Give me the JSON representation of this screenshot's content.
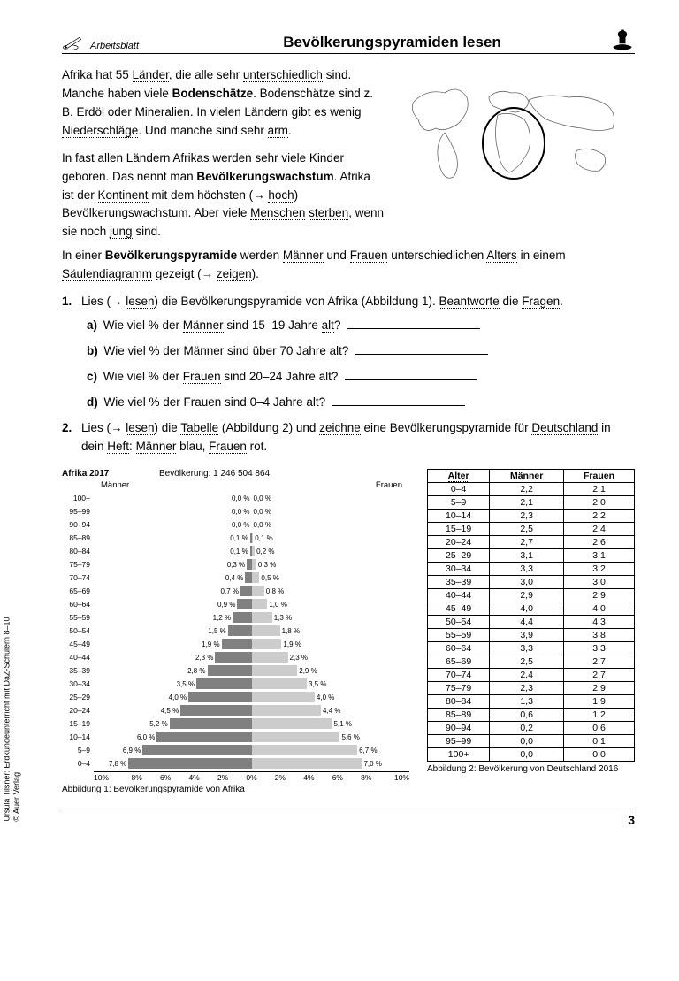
{
  "header": {
    "sheet_label": "Arbeitsblatt",
    "title": "Bevölkerungspyramiden lesen"
  },
  "intro": {
    "p1_html": "Afrika hat 55 <span class='u'>Länder</span>, die alle sehr <span class='u'>unterschiedlich</span> sind. Manche haben viele <span class='b'>Bodenschätze</span>. Bodenschätze sind z. B. <span class='u'>Erdöl</span> oder <span class='u'>Mineralien</span>. In vielen Ländern gibt es wenig <span class='u'>Niederschläge</span>. Und manche sind sehr <span class='u'>arm</span>.",
    "p2_html": "In fast allen Ländern Afrikas werden sehr viele <span class='u'>Kinder</span> geboren. Das nennt man <span class='b'>Bevölkerungswachstum</span>. Afrika ist der <span class='u'>Kontinent</span> mit dem höchsten (→ <span class='u'>hoch</span>) Bevölkerungswachstum. Aber viele <span class='u'>Menschen</span> <span class='u'>sterben</span>, wenn sie noch <span class='u'>jung</span> sind.",
    "p3_html": "In einer <span class='b'>Bevölkerungspyramide</span> werden <span class='u'>Männer</span> und <span class='u'>Frauen</span> unterschiedlichen <span class='u'>Alters</span> in einem <span class='u'>Säulendiagramm</span> gezeigt (→ <span class='u'>zeigen</span>)."
  },
  "tasks": {
    "t1": {
      "num": "1.",
      "text_html": "Lies (→ <span class='u'>lesen</span>) die Bevölkerungspyramide von Afrika (Abbildung 1). <span class='u'>Beantworte</span> die <span class='u'>Fragen</span>.",
      "subs": [
        {
          "lbl": "a)",
          "html": "Wie viel % der <span class='u'>Männer</span> sind 15–19 Jahre <span class='u'>alt</span>?"
        },
        {
          "lbl": "b)",
          "html": "Wie viel % der Männer sind über 70 Jahre alt?"
        },
        {
          "lbl": "c)",
          "html": "Wie viel % der <span class='u'>Frauen</span> sind 20–24 Jahre alt?"
        },
        {
          "lbl": "d)",
          "html": "Wie viel % der Frauen sind 0–4 Jahre alt?"
        }
      ]
    },
    "t2": {
      "num": "2.",
      "text_html": "Lies (→ <span class='u'>lesen</span>) die <span class='u'>Tabelle</span> (Abbildung 2) und <span class='u'>zeichne</span> eine Bevölkerungspyramide für <span class='u'>Deutschland</span> in dein <span class='u'>Heft</span>: <span class='u'>Männer</span> blau, <span class='u'>Frauen</span> rot."
    }
  },
  "pyramid": {
    "title": "Afrika 2017",
    "population_label": "Bevölkerung: 1 246 504 864",
    "col_men": "Männer",
    "col_women": "Frauen",
    "type": "population-pyramid",
    "bar_color_men": "#808080",
    "bar_color_women": "#cccccc",
    "max_pct": 10,
    "axis_ticks": [
      "10%",
      "8%",
      "6%",
      "4%",
      "2%",
      "0%",
      "2%",
      "4%",
      "6%",
      "8%",
      "10%"
    ],
    "rows": [
      {
        "age": "100+",
        "m": 0.0,
        "f": 0.0
      },
      {
        "age": "95–99",
        "m": 0.0,
        "f": 0.0
      },
      {
        "age": "90–94",
        "m": 0.0,
        "f": 0.0
      },
      {
        "age": "85–89",
        "m": 0.1,
        "f": 0.1
      },
      {
        "age": "80–84",
        "m": 0.1,
        "f": 0.2
      },
      {
        "age": "75–79",
        "m": 0.3,
        "f": 0.3
      },
      {
        "age": "70–74",
        "m": 0.4,
        "f": 0.5
      },
      {
        "age": "65–69",
        "m": 0.7,
        "f": 0.8
      },
      {
        "age": "60–64",
        "m": 0.9,
        "f": 1.0
      },
      {
        "age": "55–59",
        "m": 1.2,
        "f": 1.3
      },
      {
        "age": "50–54",
        "m": 1.5,
        "f": 1.8
      },
      {
        "age": "45–49",
        "m": 1.9,
        "f": 1.9
      },
      {
        "age": "40–44",
        "m": 2.3,
        "f": 2.3
      },
      {
        "age": "35–39",
        "m": 2.8,
        "f": 2.9
      },
      {
        "age": "30–34",
        "m": 3.5,
        "f": 3.5
      },
      {
        "age": "25–29",
        "m": 4.0,
        "f": 4.0
      },
      {
        "age": "20–24",
        "m": 4.5,
        "f": 4.4
      },
      {
        "age": "15–19",
        "m": 5.2,
        "f": 5.1
      },
      {
        "age": "10–14",
        "m": 6.0,
        "f": 5.6
      },
      {
        "age": "5–9",
        "m": 6.9,
        "f": 6.7
      },
      {
        "age": "0–4",
        "m": 7.8,
        "f": 7.0
      }
    ],
    "caption": "Abbildung 1: Bevölkerungspyramide von Afrika"
  },
  "table": {
    "col_age_html": "<span class='u'>Alter</span>",
    "col_men": "Männer",
    "col_women": "Frauen",
    "rows": [
      [
        "0–4",
        "2,2",
        "2,1"
      ],
      [
        "5–9",
        "2,1",
        "2,0"
      ],
      [
        "10–14",
        "2,3",
        "2,2"
      ],
      [
        "15–19",
        "2,5",
        "2,4"
      ],
      [
        "20–24",
        "2,7",
        "2,6"
      ],
      [
        "25–29",
        "3,1",
        "3,1"
      ],
      [
        "30–34",
        "3,3",
        "3,2"
      ],
      [
        "35–39",
        "3,0",
        "3,0"
      ],
      [
        "40–44",
        "2,9",
        "2,9"
      ],
      [
        "45–49",
        "4,0",
        "4,0"
      ],
      [
        "50–54",
        "4,4",
        "4,3"
      ],
      [
        "55–59",
        "3,9",
        "3,8"
      ],
      [
        "60–64",
        "3,3",
        "3,3"
      ],
      [
        "65–69",
        "2,5",
        "2,7"
      ],
      [
        "70–74",
        "2,4",
        "2,7"
      ],
      [
        "75–79",
        "2,3",
        "2,9"
      ],
      [
        "80–84",
        "1,3",
        "1,9"
      ],
      [
        "85–89",
        "0,6",
        "1,2"
      ],
      [
        "90–94",
        "0,2",
        "0,6"
      ],
      [
        "95–99",
        "0,0",
        "0,1"
      ],
      [
        "100+",
        "0,0",
        "0,0"
      ]
    ],
    "caption": "Abbildung 2: Bevölkerung von Deutschland 2016"
  },
  "footer": {
    "page_num": "3",
    "credit_line1": "Ursula Tilsner: Erdkundeunterricht mit DaZ-Schülern 8–10",
    "credit_line2": "© Auer Verlag"
  }
}
